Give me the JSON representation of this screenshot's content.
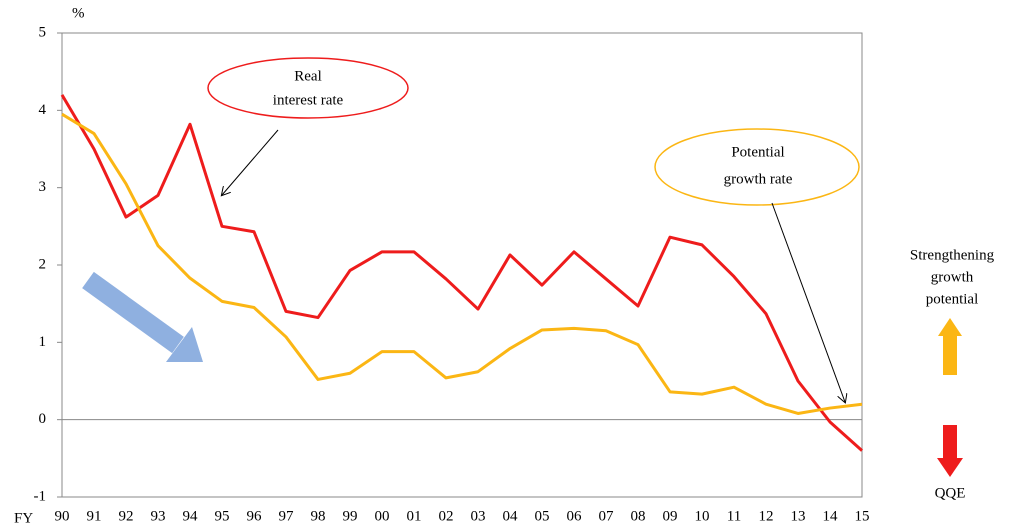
{
  "chart_data": {
    "type": "line",
    "y_unit": "%",
    "x_label": "FY",
    "categories": [
      "90",
      "91",
      "92",
      "93",
      "94",
      "95",
      "96",
      "97",
      "98",
      "99",
      "00",
      "01",
      "02",
      "03",
      "04",
      "05",
      "06",
      "07",
      "08",
      "09",
      "10",
      "11",
      "12",
      "13",
      "14",
      "15"
    ],
    "series": [
      {
        "color": "#ee1c1c",
        "values": [
          4.2,
          3.5,
          2.62,
          2.9,
          3.82,
          2.5,
          2.43,
          1.4,
          1.32,
          1.93,
          2.17,
          2.17,
          1.82,
          1.43,
          2.13,
          1.74,
          2.17,
          1.82,
          1.47,
          2.36,
          2.26,
          1.85,
          1.37,
          0.5,
          -0.03,
          -0.4
        ]
      },
      {
        "color": "#fbb614",
        "values": [
          3.95,
          3.7,
          3.05,
          2.25,
          1.83,
          1.53,
          1.45,
          1.07,
          0.52,
          0.6,
          0.88,
          0.88,
          0.54,
          0.62,
          0.92,
          1.16,
          1.18,
          1.15,
          0.97,
          0.36,
          0.33,
          0.42,
          0.2,
          0.08,
          0.15,
          0.2
        ]
      }
    ],
    "ylim": [
      -1,
      5
    ],
    "yticks": [
      -1,
      0,
      1,
      2,
      3,
      4,
      5
    ],
    "annotations": {
      "real_rate": [
        "Real",
        "interest rate"
      ],
      "potential_rate": [
        "Potential",
        "growth rate"
      ],
      "strengthening": [
        "Strengthening",
        "growth",
        "potential"
      ],
      "qqe": [
        "QQE"
      ]
    }
  }
}
